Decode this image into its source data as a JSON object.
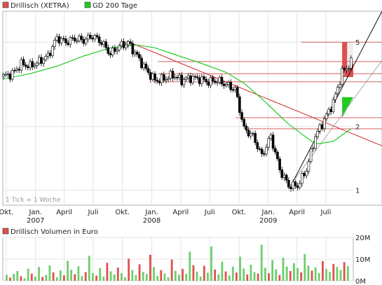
{
  "chart_data": [
    {
      "type": "candlestick",
      "legend": [
        {
          "label": "Drillisch (XETRA)",
          "color": "#e05050"
        },
        {
          "label": "GD 200 Tage",
          "color": "#22cc22"
        }
      ],
      "y_scale": "log",
      "ylim": [
        0.85,
        7
      ],
      "y_ticks": [
        {
          "value": 5,
          "label": "5"
        },
        {
          "value": 2,
          "label": "2"
        },
        {
          "value": 1,
          "label": "1"
        }
      ],
      "x_range": [
        "2006-09-20",
        "2009-09-25"
      ],
      "x_ticks": [
        {
          "date": "2006-10-01",
          "label": "Okt."
        },
        {
          "date": "2007-01-01",
          "label": "Jan."
        },
        {
          "date": "2007-04-01",
          "label": "April"
        },
        {
          "date": "2007-07-01",
          "label": "Juli"
        },
        {
          "date": "2007-10-01",
          "label": "Okt."
        },
        {
          "date": "2008-01-01",
          "label": "Jan."
        },
        {
          "date": "2008-04-01",
          "label": "April"
        },
        {
          "date": "2008-07-01",
          "label": "Juli"
        },
        {
          "date": "2008-10-01",
          "label": "Okt."
        },
        {
          "date": "2009-01-01",
          "label": "Jan."
        },
        {
          "date": "2009-04-01",
          "label": "April"
        },
        {
          "date": "2009-07-01",
          "label": "Juli"
        }
      ],
      "year_labels": [
        {
          "date": "2007-01-01",
          "label": "2007"
        },
        {
          "date": "2008-01-01",
          "label": "2008"
        },
        {
          "date": "2009-01-01",
          "label": "2009"
        }
      ],
      "note": "1 Tick = 1 Woche",
      "price": [
        [
          "2006-09-22",
          3.45
        ],
        [
          "2006-10-20",
          3.55
        ],
        [
          "2006-11-17",
          3.95
        ],
        [
          "2006-12-15",
          3.85
        ],
        [
          "2007-01-12",
          4.05
        ],
        [
          "2007-02-09",
          4.3
        ],
        [
          "2007-03-09",
          5.25
        ],
        [
          "2007-04-06",
          5.0
        ],
        [
          "2007-05-04",
          5.2
        ],
        [
          "2007-06-01",
          5.1
        ],
        [
          "2007-06-29",
          5.35
        ],
        [
          "2007-07-27",
          5.0
        ],
        [
          "2007-08-24",
          4.4
        ],
        [
          "2007-09-21",
          4.8
        ],
        [
          "2007-10-19",
          4.95
        ],
        [
          "2007-11-16",
          4.3
        ],
        [
          "2007-12-14",
          3.7
        ],
        [
          "2008-01-11",
          3.3
        ],
        [
          "2008-02-08",
          3.35
        ],
        [
          "2008-03-07",
          3.5
        ],
        [
          "2008-04-04",
          3.3
        ],
        [
          "2008-05-02",
          3.4
        ],
        [
          "2008-05-30",
          3.35
        ],
        [
          "2008-06-27",
          3.25
        ],
        [
          "2008-07-25",
          3.3
        ],
        [
          "2008-08-22",
          3.15
        ],
        [
          "2008-09-19",
          3.0
        ],
        [
          "2008-10-17",
          1.95
        ],
        [
          "2008-11-14",
          1.8
        ],
        [
          "2008-12-12",
          1.45
        ],
        [
          "2009-01-09",
          1.8
        ],
        [
          "2009-02-06",
          1.25
        ],
        [
          "2009-03-06",
          1.05
        ],
        [
          "2009-04-03",
          1.05
        ],
        [
          "2009-05-01",
          1.25
        ],
        [
          "2009-05-29",
          1.8
        ],
        [
          "2009-06-26",
          2.15
        ],
        [
          "2009-07-24",
          2.6
        ],
        [
          "2009-08-21",
          3.6
        ],
        [
          "2009-09-18",
          4.0
        ]
      ],
      "gd200": [
        [
          "2006-09-22",
          3.35
        ],
        [
          "2006-12-15",
          3.55
        ],
        [
          "2007-03-09",
          3.85
        ],
        [
          "2007-06-01",
          4.3
        ],
        [
          "2007-08-24",
          4.7
        ],
        [
          "2007-11-16",
          4.85
        ],
        [
          "2008-01-11",
          4.7
        ],
        [
          "2008-03-07",
          4.4
        ],
        [
          "2008-05-30",
          4.0
        ],
        [
          "2008-08-22",
          3.6
        ],
        [
          "2008-10-17",
          3.2
        ],
        [
          "2008-12-12",
          2.7
        ],
        [
          "2009-03-06",
          2.05
        ],
        [
          "2009-05-29",
          1.65
        ],
        [
          "2009-07-24",
          1.7
        ],
        [
          "2009-09-18",
          1.95
        ]
      ],
      "horizontal_levels": [
        5.0,
        4.05,
        3.55,
        3.25,
        2.2,
        1.95
      ],
      "annotations": {
        "red_box": {
          "x_from": "2009-08-21",
          "x_to": "2009-09-25",
          "y_from": 3.55,
          "y_to": 5.0,
          "color": "#e05050"
        },
        "green_box": {
          "x_from": "2009-08-21",
          "x_to": "2009-09-25",
          "y_from": 2.2,
          "y_to": 2.75,
          "color": "#22cc22"
        }
      }
    },
    {
      "type": "bar",
      "legend": [
        {
          "label": "Drillisch Volumen in Euro",
          "color": "#e05050"
        }
      ],
      "ylim": [
        0,
        20
      ],
      "y_ticks": [
        {
          "value": 20,
          "label": "20M"
        },
        {
          "value": 10,
          "label": "10M"
        },
        {
          "value": 0,
          "label": "0M"
        }
      ],
      "unit": "Mio. Euro",
      "x_range": [
        "2006-09-20",
        "2009-09-25"
      ],
      "values": [
        2.8,
        1.5,
        3.2,
        4.5,
        2.1,
        1.2,
        5.6,
        3.3,
        2.0,
        6.4,
        1.8,
        2.7,
        7.1,
        3.9,
        1.6,
        4.8,
        2.5,
        9.2,
        5.1,
        3.0,
        6.7,
        2.2,
        4.0,
        11.5,
        3.6,
        2.4,
        5.9,
        1.9,
        8.3,
        4.4,
        2.9,
        6.1,
        3.5,
        1.7,
        10.2,
        5.0,
        2.6,
        7.6,
        4.1,
        3.1,
        12.0,
        6.3,
        2.3,
        4.9,
        3.4,
        1.6,
        9.8,
        4.6,
        2.8,
        5.5,
        3.2,
        13.4,
        7.2,
        4.2,
        2.0,
        6.9,
        3.7,
        15.8,
        5.2,
        3.0,
        8.8,
        4.3,
        2.5,
        6.5,
        3.8,
        11.1,
        5.7,
        2.9,
        7.4,
        4.0,
        3.3,
        16.6,
        6.0,
        3.5,
        9.5,
        5.3,
        2.7,
        10.7,
        6.6,
        4.5,
        8.1,
        5.9,
        3.9,
        12.3,
        7.0,
        4.7,
        6.2,
        3.6,
        9.1,
        5.4,
        4.1,
        7.8,
        6.4,
        5.0,
        8.6,
        6.8
      ]
    }
  ]
}
